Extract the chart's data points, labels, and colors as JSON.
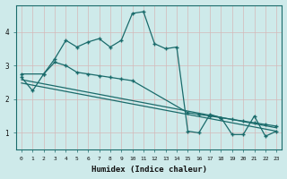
{
  "xlabel": "Humidex (Indice chaleur)",
  "ylabel": "",
  "bg_color": "#ceeaea",
  "grid_color": "#b0d8d8",
  "line_color": "#1a6b6b",
  "xlim": [
    -0.5,
    23.5
  ],
  "ylim": [
    0.5,
    4.8
  ],
  "yticks": [
    1,
    2,
    3,
    4
  ],
  "xticks": [
    0,
    1,
    2,
    3,
    4,
    5,
    6,
    7,
    8,
    9,
    10,
    11,
    12,
    13,
    14,
    15,
    16,
    17,
    18,
    19,
    20,
    21,
    22,
    23
  ],
  "line1_x": [
    0,
    1,
    2,
    3,
    4,
    5,
    6,
    7,
    8,
    9,
    10,
    11,
    12,
    13,
    14,
    15,
    16,
    17,
    18,
    19,
    20,
    21,
    22,
    23
  ],
  "line1_y": [
    2.65,
    2.25,
    2.75,
    3.2,
    3.75,
    3.55,
    3.7,
    3.8,
    3.55,
    3.75,
    4.55,
    4.6,
    3.65,
    3.5,
    3.55,
    1.05,
    1.0,
    1.55,
    1.45,
    0.95,
    0.95,
    1.5,
    0.9,
    1.05
  ],
  "line2_x": [
    0,
    2,
    3,
    4,
    5,
    6,
    7,
    8,
    9,
    10,
    15,
    16,
    17,
    18,
    19,
    20,
    21,
    22,
    23
  ],
  "line2_y": [
    2.75,
    2.75,
    3.1,
    3.0,
    2.8,
    2.75,
    2.7,
    2.65,
    2.6,
    2.55,
    1.6,
    1.55,
    1.5,
    1.45,
    1.4,
    1.35,
    1.3,
    1.25,
    1.2
  ],
  "line3_x": [
    0,
    23
  ],
  "line3_y": [
    2.58,
    1.15
  ],
  "line4_x": [
    0,
    23
  ],
  "line4_y": [
    2.48,
    1.05
  ]
}
